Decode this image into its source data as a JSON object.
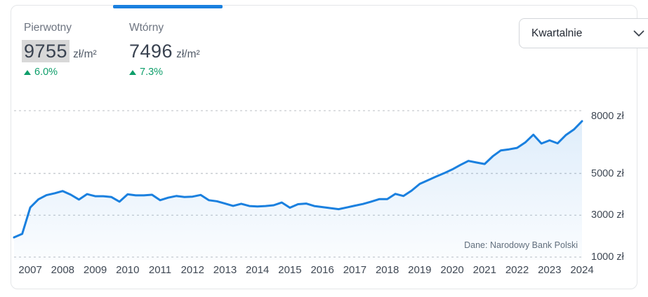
{
  "tabs": [
    {
      "label": "Pierwotny",
      "value": "9755",
      "unit": "zł/m²",
      "change": "6.0%",
      "direction": "up",
      "active": false,
      "value_highlighted": true
    },
    {
      "label": "Wtórny",
      "value": "7496",
      "unit": "zł/m²",
      "change": "7.3%",
      "direction": "up",
      "active": true,
      "value_highlighted": false
    }
  ],
  "dropdown": {
    "value": "Kwartalnie"
  },
  "colors": {
    "accent": "#1a80df",
    "positive": "#0d9e6a",
    "grid": "#c6cacf",
    "area_top": "rgba(26,128,223,0.14)",
    "area_bottom": "rgba(26,128,223,0.02)"
  },
  "chart_data": {
    "type": "line",
    "x_frequency": "quarterly",
    "x_start": "2006 Q3",
    "x_end": "2024 Q1",
    "series": [
      {
        "name": "Wtórny",
        "values": [
          1940,
          2110,
          3370,
          3760,
          3960,
          4050,
          4160,
          3980,
          3750,
          4010,
          3910,
          3910,
          3870,
          3650,
          4000,
          3950,
          3950,
          3980,
          3720,
          3840,
          3920,
          3870,
          3890,
          3970,
          3720,
          3670,
          3560,
          3450,
          3550,
          3440,
          3420,
          3440,
          3480,
          3610,
          3360,
          3530,
          3560,
          3440,
          3390,
          3340,
          3290,
          3370,
          3460,
          3540,
          3650,
          3770,
          3770,
          4020,
          3920,
          4180,
          4500,
          4670,
          4850,
          5010,
          5190,
          5400,
          5600,
          5520,
          5450,
          5820,
          6100,
          6150,
          6220,
          6480,
          6850,
          6430,
          6580,
          6440,
          6830,
          7100,
          7496
        ]
      }
    ],
    "x_tick_labels": [
      "2007",
      "2008",
      "2009",
      "2010",
      "2011",
      "2012",
      "2013",
      "2014",
      "2015",
      "2016",
      "2017",
      "2018",
      "2019",
      "2020",
      "2021",
      "2022",
      "2023",
      "2024"
    ],
    "y_ticks": [
      {
        "value": 8000,
        "label": "8000 zł"
      },
      {
        "value": 5000,
        "label": "5000 zł"
      },
      {
        "value": 3000,
        "label": "3000 zł"
      },
      {
        "value": 1000,
        "label": "1000 zł"
      }
    ],
    "ylim": [
      1000,
      8000
    ],
    "grid": "horizontal-dashed",
    "legend": "none",
    "title": "",
    "xlabel": "",
    "ylabel": "",
    "unit": "zł",
    "source": "Dane: Narodowy Bank Polski"
  }
}
